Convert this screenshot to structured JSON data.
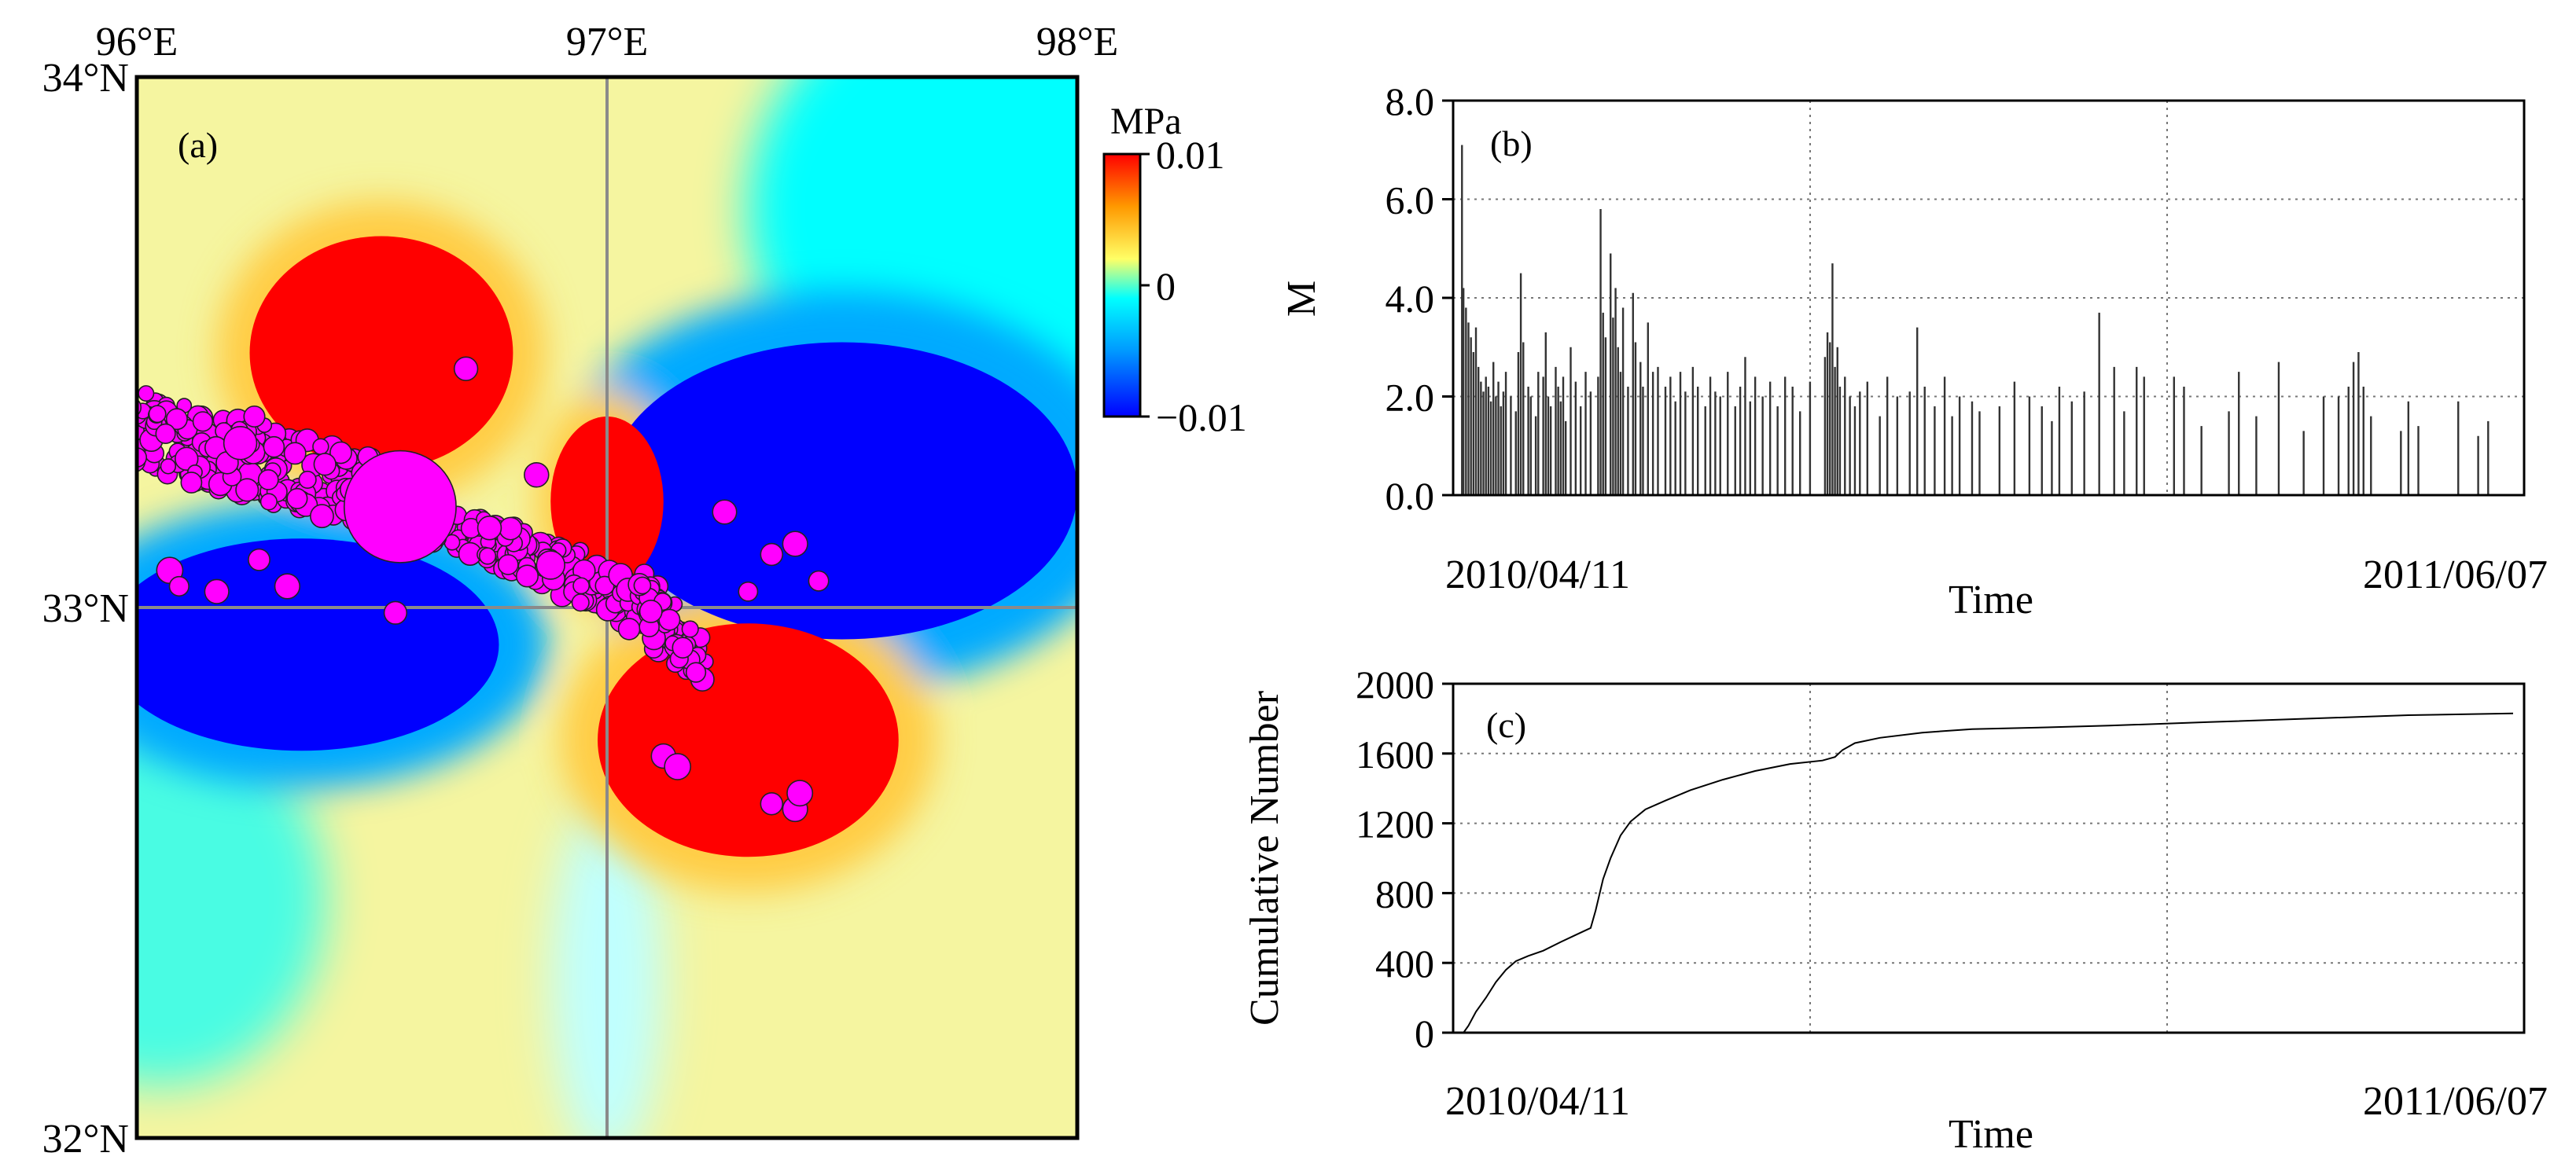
{
  "chart_data": [
    {
      "id": "a",
      "type": "heatmap",
      "panel_label": "(a)",
      "x_ticks": [
        {
          "value": 96,
          "label": "96°E"
        },
        {
          "value": 97,
          "label": "97°E"
        },
        {
          "value": 98,
          "label": "98°E"
        }
      ],
      "y_ticks": [
        {
          "value": 34,
          "label": "34°N"
        },
        {
          "value": 33,
          "label": "33°N"
        },
        {
          "value": 32,
          "label": "32°N"
        }
      ],
      "xlim": [
        96,
        98
      ],
      "ylim": [
        32,
        34
      ],
      "colorbar": {
        "unit": "MPa",
        "ticks": [
          {
            "value": 0.01,
            "label": "0.01"
          },
          {
            "value": 0,
            "label": "0"
          },
          {
            "value": -0.01,
            "label": "−0.01"
          }
        ],
        "range": [
          -0.01,
          0.01
        ],
        "colors": [
          "#0000ff",
          "#00aaff",
          "#00ffff",
          "#ffff99",
          "#ffcc44",
          "#ff0000"
        ]
      },
      "positive_lobes": [
        {
          "lon": 96.52,
          "lat": 33.48,
          "rx": 0.28,
          "ry": 0.22
        },
        {
          "lon": 97.0,
          "lat": 33.2,
          "rx": 0.12,
          "ry": 0.16
        },
        {
          "lon": 97.3,
          "lat": 32.75,
          "rx": 0.32,
          "ry": 0.22
        }
      ],
      "negative_lobes": [
        {
          "lon": 97.5,
          "lat": 33.22,
          "rx": 0.5,
          "ry": 0.28
        },
        {
          "lon": 96.35,
          "lat": 32.93,
          "rx": 0.42,
          "ry": 0.2
        }
      ],
      "crosshair": {
        "lon": 97.0,
        "lat": 33.0
      },
      "marker_color": "#ff00ff",
      "mainshock": {
        "lon": 96.56,
        "lat": 33.19,
        "r_deg": 0.17
      },
      "large_aftershocks": [
        {
          "lon": 96.22,
          "lat": 33.31,
          "r_deg": 0.07
        },
        {
          "lon": 96.88,
          "lat": 33.08,
          "r_deg": 0.06
        },
        {
          "lon": 96.75,
          "lat": 33.15,
          "r_deg": 0.05
        }
      ],
      "isolated_events": [
        [
          96.7,
          33.45
        ],
        [
          97.25,
          33.18
        ],
        [
          97.4,
          33.12
        ],
        [
          97.45,
          33.05
        ],
        [
          97.12,
          32.72
        ],
        [
          97.15,
          32.7
        ],
        [
          97.35,
          32.63
        ],
        [
          97.4,
          32.62
        ],
        [
          97.41,
          32.65
        ],
        [
          96.55,
          32.99
        ],
        [
          96.07,
          33.07
        ],
        [
          96.09,
          33.04
        ],
        [
          96.17,
          33.03
        ],
        [
          96.32,
          33.04
        ],
        [
          96.26,
          33.09
        ],
        [
          96.85,
          33.25
        ],
        [
          96.25,
          33.36
        ],
        [
          96.4,
          33.27
        ],
        [
          97.3,
          33.03
        ],
        [
          97.35,
          33.1
        ]
      ]
    },
    {
      "id": "b",
      "type": "bar",
      "panel_label": "(b)",
      "ylabel": "M",
      "xlabel": "Time",
      "ylim": [
        0,
        8
      ],
      "y_ticks": [
        {
          "value": 0,
          "label": "0.0"
        },
        {
          "value": 2,
          "label": "2.0"
        },
        {
          "value": 4,
          "label": "4.0"
        },
        {
          "value": 6,
          "label": "6.0"
        },
        {
          "value": 8,
          "label": "8.0"
        }
      ],
      "x_labels": [
        "2010/04/11",
        "2011/06/07"
      ],
      "x_days": [
        0,
        422
      ],
      "magnitudes": [
        [
          0.4,
          7.1
        ],
        [
          1,
          4.2
        ],
        [
          2,
          3.8
        ],
        [
          3,
          3.5
        ],
        [
          4,
          3.2
        ],
        [
          5,
          2.9
        ],
        [
          6,
          3.4
        ],
        [
          7,
          2.6
        ],
        [
          8,
          2.3
        ],
        [
          9,
          2.1
        ],
        [
          10,
          2.4
        ],
        [
          11,
          2.2
        ],
        [
          12,
          1.9
        ],
        [
          13,
          2.7
        ],
        [
          14,
          2.0
        ],
        [
          15,
          2.3
        ],
        [
          16,
          1.8
        ],
        [
          17,
          2.1
        ],
        [
          18,
          2.5
        ],
        [
          20,
          2.0
        ],
        [
          22,
          1.7
        ],
        [
          23,
          2.9
        ],
        [
          24,
          4.5
        ],
        [
          25,
          3.1
        ],
        [
          27,
          2.2
        ],
        [
          28,
          2.0
        ],
        [
          30,
          1.6
        ],
        [
          31,
          2.5
        ],
        [
          33,
          2.4
        ],
        [
          34,
          3.3
        ],
        [
          35,
          2.0
        ],
        [
          36,
          1.8
        ],
        [
          38,
          2.6
        ],
        [
          39,
          2.2
        ],
        [
          40,
          1.9
        ],
        [
          41,
          2.4
        ],
        [
          42,
          1.5
        ],
        [
          44,
          3.0
        ],
        [
          46,
          2.3
        ],
        [
          48,
          1.8
        ],
        [
          50,
          2.5
        ],
        [
          52,
          2.1
        ],
        [
          55,
          2.4
        ],
        [
          56,
          5.8
        ],
        [
          57,
          3.7
        ],
        [
          58,
          3.2
        ],
        [
          60,
          4.9
        ],
        [
          61,
          3.6
        ],
        [
          62,
          4.2
        ],
        [
          63,
          3.0
        ],
        [
          64,
          2.5
        ],
        [
          65,
          3.8
        ],
        [
          67,
          2.2
        ],
        [
          69,
          4.1
        ],
        [
          70,
          3.1
        ],
        [
          72,
          2.7
        ],
        [
          73,
          2.2
        ],
        [
          75,
          3.5
        ],
        [
          77,
          2.5
        ],
        [
          79,
          2.6
        ],
        [
          82,
          2.2
        ],
        [
          84,
          2.4
        ],
        [
          86,
          1.9
        ],
        [
          88,
          2.5
        ],
        [
          90,
          2.1
        ],
        [
          93,
          2.6
        ],
        [
          95,
          2.2
        ],
        [
          98,
          1.8
        ],
        [
          100,
          2.4
        ],
        [
          102,
          2.1
        ],
        [
          104,
          2.0
        ],
        [
          107,
          2.5
        ],
        [
          110,
          1.8
        ],
        [
          112,
          2.2
        ],
        [
          114,
          2.8
        ],
        [
          116,
          1.9
        ],
        [
          118,
          2.4
        ],
        [
          121,
          2.0
        ],
        [
          124,
          2.3
        ],
        [
          127,
          1.8
        ],
        [
          130,
          2.4
        ],
        [
          133,
          2.2
        ],
        [
          136,
          1.7
        ],
        [
          140,
          2.3
        ],
        [
          146,
          2.8
        ],
        [
          147,
          3.3
        ],
        [
          148,
          3.1
        ],
        [
          149,
          4.7
        ],
        [
          150,
          2.6
        ],
        [
          151,
          3.0
        ],
        [
          152,
          2.2
        ],
        [
          154,
          2.4
        ],
        [
          156,
          2.0
        ],
        [
          158,
          1.8
        ],
        [
          160,
          2.1
        ],
        [
          163,
          2.3
        ],
        [
          168,
          1.6
        ],
        [
          171,
          2.4
        ],
        [
          175,
          2.0
        ],
        [
          180,
          2.1
        ],
        [
          183,
          3.4
        ],
        [
          186,
          2.2
        ],
        [
          190,
          1.8
        ],
        [
          194,
          2.4
        ],
        [
          197,
          1.6
        ],
        [
          200,
          2.0
        ],
        [
          205,
          1.9
        ],
        [
          208,
          1.7
        ],
        [
          216,
          1.8
        ],
        [
          222,
          2.3
        ],
        [
          228,
          2.0
        ],
        [
          233,
          1.8
        ],
        [
          237,
          1.5
        ],
        [
          240,
          2.2
        ],
        [
          245,
          1.9
        ],
        [
          250,
          2.1
        ],
        [
          256,
          3.7
        ],
        [
          262,
          2.6
        ],
        [
          266,
          1.7
        ],
        [
          271,
          2.6
        ],
        [
          274,
          2.4
        ],
        [
          286,
          2.4
        ],
        [
          290,
          2.2
        ],
        [
          297,
          1.4
        ],
        [
          308,
          1.7
        ],
        [
          312,
          2.5
        ],
        [
          319,
          1.6
        ],
        [
          328,
          2.7
        ],
        [
          338,
          1.3
        ],
        [
          346,
          2.0
        ],
        [
          352,
          2.0
        ],
        [
          356,
          2.2
        ],
        [
          358,
          2.7
        ],
        [
          360,
          2.9
        ],
        [
          362,
          2.2
        ],
        [
          365,
          1.6
        ],
        [
          377,
          1.3
        ],
        [
          380,
          1.9
        ],
        [
          384,
          1.4
        ],
        [
          400,
          1.9
        ],
        [
          408,
          1.2
        ],
        [
          412,
          1.5
        ]
      ]
    },
    {
      "id": "c",
      "type": "line",
      "panel_label": "(c)",
      "ylabel": "Cumulative Number",
      "xlabel": "Time",
      "ylim": [
        0,
        2000
      ],
      "y_ticks": [
        {
          "value": 0,
          "label": "0"
        },
        {
          "value": 400,
          "label": "400"
        },
        {
          "value": 800,
          "label": "800"
        },
        {
          "value": 1200,
          "label": "1200"
        },
        {
          "value": 1600,
          "label": "1600"
        },
        {
          "value": 2000,
          "label": "2000"
        }
      ],
      "x_labels": [
        "2010/04/11",
        "2011/06/07"
      ],
      "x_days": [
        0,
        422
      ],
      "curve": [
        [
          1,
          0
        ],
        [
          3,
          40
        ],
        [
          6,
          120
        ],
        [
          10,
          200
        ],
        [
          14,
          290
        ],
        [
          18,
          360
        ],
        [
          22,
          410
        ],
        [
          27,
          440
        ],
        [
          33,
          470
        ],
        [
          40,
          520
        ],
        [
          46,
          560
        ],
        [
          49,
          580
        ],
        [
          52,
          600
        ],
        [
          54,
          700
        ],
        [
          57,
          880
        ],
        [
          60,
          1000
        ],
        [
          64,
          1130
        ],
        [
          68,
          1210
        ],
        [
          74,
          1280
        ],
        [
          82,
          1330
        ],
        [
          92,
          1390
        ],
        [
          105,
          1450
        ],
        [
          118,
          1500
        ],
        [
          132,
          1540
        ],
        [
          145,
          1560
        ],
        [
          150,
          1580
        ],
        [
          153,
          1620
        ],
        [
          158,
          1660
        ],
        [
          168,
          1690
        ],
        [
          185,
          1720
        ],
        [
          205,
          1740
        ],
        [
          235,
          1750
        ],
        [
          260,
          1760
        ],
        [
          300,
          1780
        ],
        [
          340,
          1800
        ],
        [
          380,
          1820
        ],
        [
          422,
          1830
        ]
      ]
    }
  ]
}
